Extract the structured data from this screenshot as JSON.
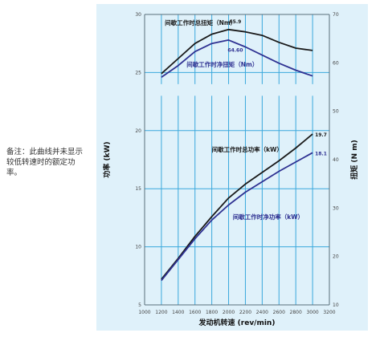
{
  "note": "备注：此曲线并未显示较低转速时的额定功率。",
  "chart_data": {
    "type": "line",
    "xlabel": "发动机转速 (rev/min)",
    "ylabel_left": "功率 (kW)",
    "ylabel_right": "扭矩 (N m)",
    "x_ticks": [
      1000,
      1200,
      1400,
      1600,
      1800,
      2000,
      2200,
      2400,
      2600,
      2800,
      3000,
      3200
    ],
    "xlim": [
      1000,
      3200
    ],
    "y_left_ticks": [
      5,
      10,
      15,
      20,
      25,
      30
    ],
    "y_left_lim": [
      5,
      30
    ],
    "y_right_ticks": [
      10,
      20,
      30,
      40,
      50,
      60,
      70
    ],
    "y_right_lim": [
      10,
      70
    ],
    "grid": true,
    "torque_scale_break": {
      "gap_bottom_left": 23,
      "gap_top_left": 24
    },
    "series": [
      {
        "name": "间歇工作时总扭矩（Nm）",
        "axis": "left",
        "color": "#1a1a1a",
        "end_label": "65.9",
        "x": [
          1200,
          1400,
          1600,
          1800,
          2000,
          2200,
          2400,
          2600,
          2800,
          3000
        ],
        "y": [
          24.9,
          26.2,
          27.5,
          28.3,
          28.7,
          28.5,
          28.2,
          27.6,
          27.1,
          26.9
        ]
      },
      {
        "name": "间歇工作时净扭矩（Nm）",
        "axis": "left",
        "color": "#2e3192",
        "end_label": "64.60",
        "x": [
          1200,
          1400,
          1600,
          1800,
          2000,
          2200,
          2400,
          2600,
          2800,
          3000
        ],
        "y": [
          24.6,
          25.6,
          26.8,
          27.5,
          27.8,
          27.2,
          26.5,
          25.8,
          25.2,
          24.7
        ]
      },
      {
        "name": "间歇工作时总功率（kW）",
        "axis": "left",
        "color": "#1a1a1a",
        "end_label": "19.7",
        "x": [
          1200,
          1400,
          1600,
          1800,
          2000,
          2200,
          2400,
          2600,
          2800,
          3000
        ],
        "y": [
          7.2,
          9.0,
          10.9,
          12.6,
          14.2,
          15.4,
          16.4,
          17.4,
          18.5,
          19.7
        ]
      },
      {
        "name": "间歇工作时净功率（kW）",
        "axis": "left",
        "color": "#2e3192",
        "end_label": "18.1",
        "x": [
          1200,
          1400,
          1600,
          1800,
          2000,
          2200,
          2400,
          2600,
          2800,
          3000
        ],
        "y": [
          7.1,
          8.9,
          10.7,
          12.3,
          13.6,
          14.7,
          15.6,
          16.5,
          17.3,
          18.1
        ]
      }
    ],
    "labels": [
      {
        "text": "间歇工作时总扭矩（Nm）",
        "x": 1240,
        "y": 29.1,
        "color": "#1a1a1a"
      },
      {
        "text": "间歇工作时净扭矩（Nm）",
        "x": 1500,
        "y": 25.5,
        "color": "#2e3192"
      },
      {
        "text": "间歇工作时总功率（kW）",
        "x": 1800,
        "y": 18.2,
        "color": "#1a1a1a"
      },
      {
        "text": "间歇工作时净功率（kW）",
        "x": 2050,
        "y": 12.4,
        "color": "#2e3192"
      }
    ],
    "colors": {
      "plot_bg": "#dff1fa",
      "grid": "#3aa8dc",
      "axis": "#5a6e7a"
    }
  }
}
